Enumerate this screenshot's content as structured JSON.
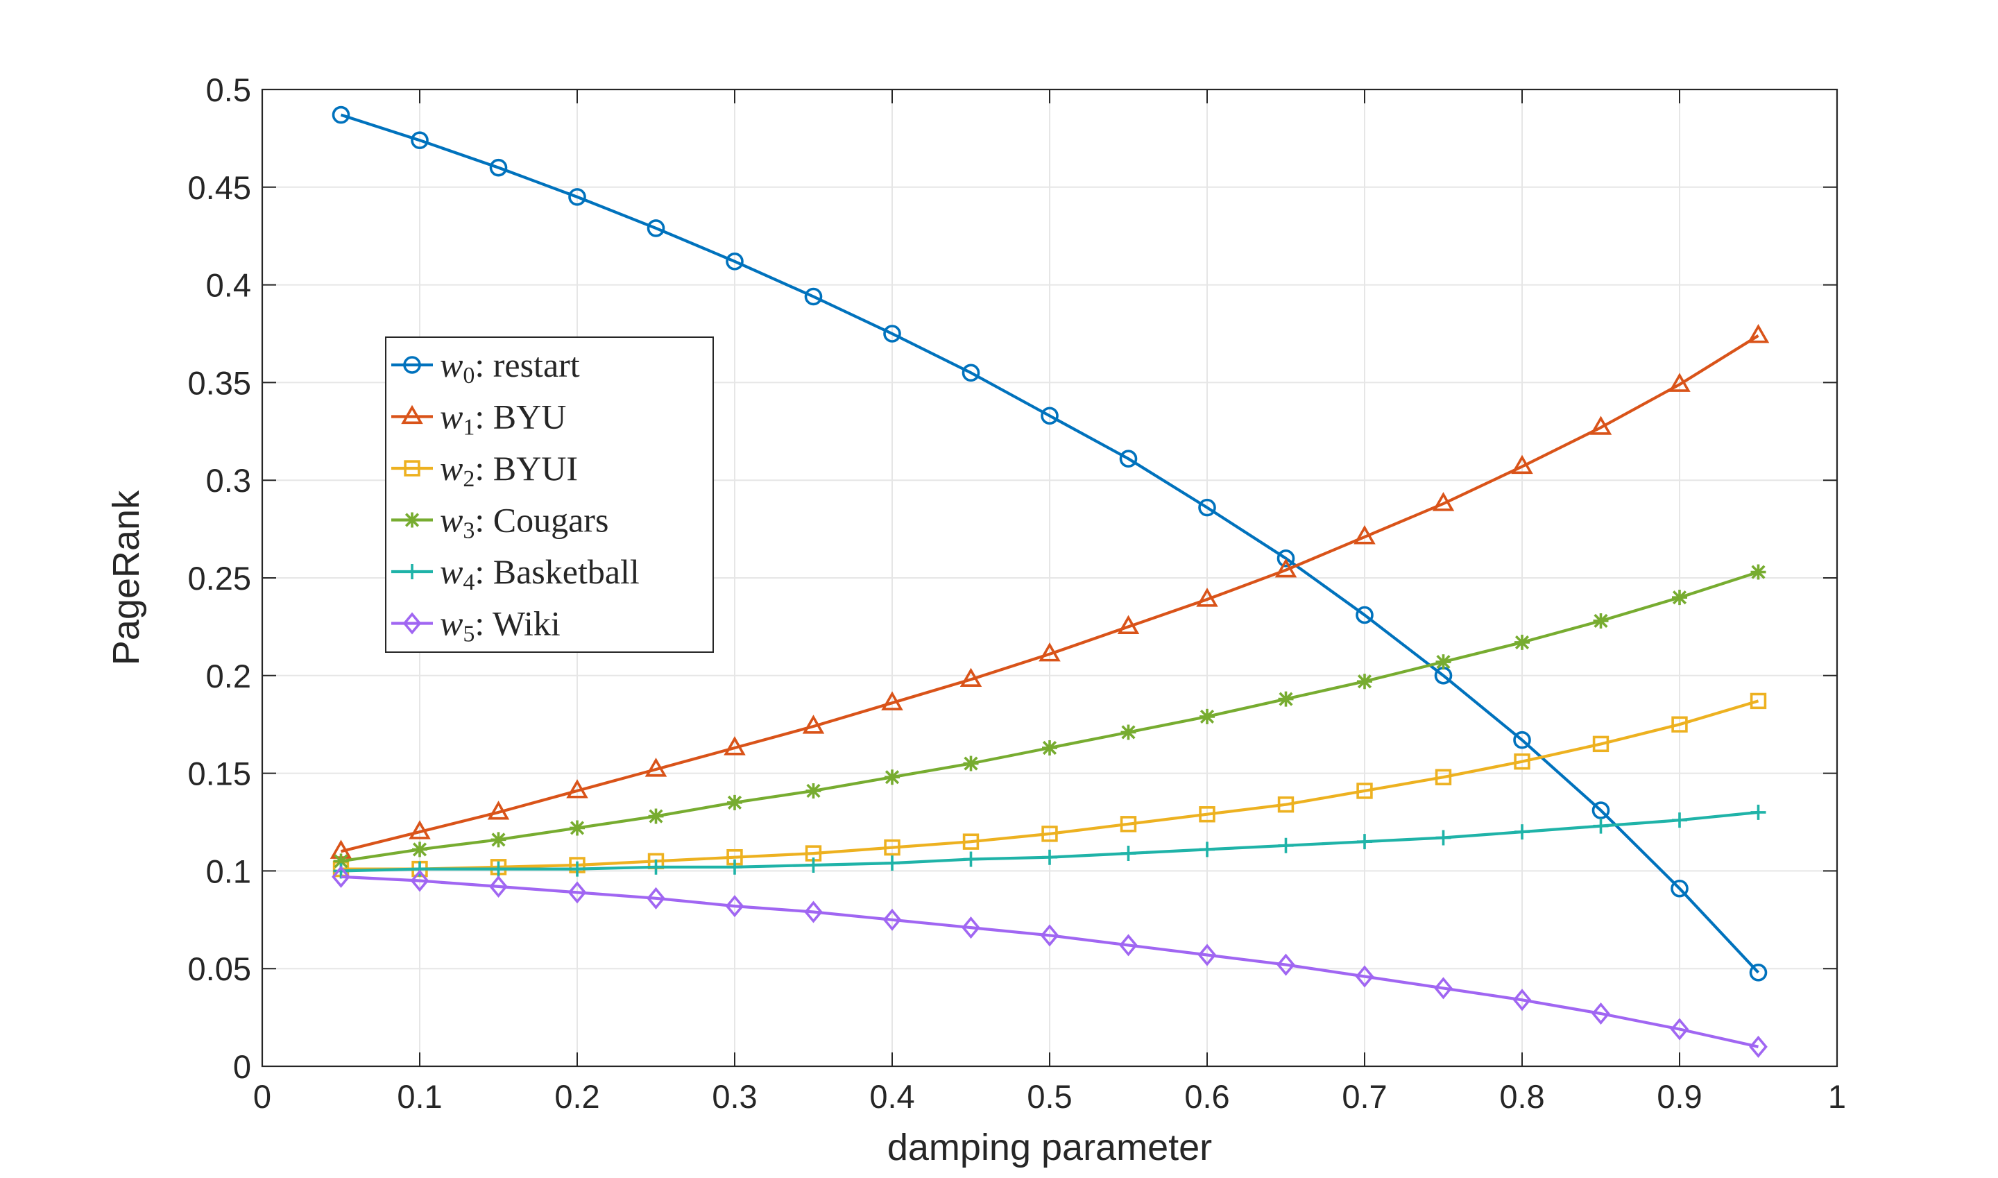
{
  "chart_data": {
    "type": "line",
    "title": "",
    "xlabel": "damping parameter",
    "ylabel": "PageRank",
    "xlim": [
      0,
      1
    ],
    "ylim": [
      0,
      0.5
    ],
    "x_ticks": [
      "0",
      "0.1",
      "0.2",
      "0.3",
      "0.4",
      "0.5",
      "0.6",
      "0.7",
      "0.8",
      "0.9",
      "1"
    ],
    "y_ticks": [
      "0",
      "0.05",
      "0.1",
      "0.15",
      "0.2",
      "0.25",
      "0.3",
      "0.35",
      "0.4",
      "0.45",
      "0.5"
    ],
    "grid": true,
    "legend_position": "left-middle",
    "x": [
      0.05,
      0.1,
      0.15,
      0.2,
      0.25,
      0.3,
      0.35,
      0.4,
      0.45,
      0.5,
      0.55,
      0.6,
      0.65,
      0.7,
      0.75,
      0.8,
      0.85,
      0.9,
      0.95
    ],
    "series": [
      {
        "name": "w0: restart",
        "sym": "w",
        "sub": "0",
        "label": ": restart",
        "color": "#0072BD",
        "marker": "circle",
        "values": [
          0.487,
          0.474,
          0.46,
          0.445,
          0.429,
          0.412,
          0.394,
          0.375,
          0.355,
          0.333,
          0.311,
          0.286,
          0.26,
          0.231,
          0.2,
          0.167,
          0.131,
          0.091,
          0.048
        ]
      },
      {
        "name": "w1: BYU",
        "sym": "w",
        "sub": "1",
        "label": ": BYU",
        "color": "#D95319",
        "marker": "triangle",
        "values": [
          0.11,
          0.12,
          0.13,
          0.141,
          0.152,
          0.163,
          0.174,
          0.186,
          0.198,
          0.211,
          0.225,
          0.239,
          0.254,
          0.271,
          0.288,
          0.307,
          0.327,
          0.349,
          0.374
        ]
      },
      {
        "name": "w2: BYUI",
        "sym": "w",
        "sub": "2",
        "label": ": BYUI",
        "color": "#EDB120",
        "marker": "square",
        "values": [
          0.101,
          0.101,
          0.102,
          0.103,
          0.105,
          0.107,
          0.109,
          0.112,
          0.115,
          0.119,
          0.124,
          0.129,
          0.134,
          0.141,
          0.148,
          0.156,
          0.165,
          0.175,
          0.187
        ]
      },
      {
        "name": "w3: Cougars",
        "sym": "w",
        "sub": "3",
        "label": ": Cougars",
        "color": "#77AC30",
        "marker": "asterisk",
        "values": [
          0.105,
          0.111,
          0.116,
          0.122,
          0.128,
          0.135,
          0.141,
          0.148,
          0.155,
          0.163,
          0.171,
          0.179,
          0.188,
          0.197,
          0.207,
          0.217,
          0.228,
          0.24,
          0.253
        ]
      },
      {
        "name": "w4: Basketball",
        "sym": "w",
        "sub": "4",
        "label": ": Basketball",
        "color": "#1FB3A8",
        "marker": "plus",
        "values": [
          0.1,
          0.101,
          0.101,
          0.101,
          0.102,
          0.102,
          0.103,
          0.104,
          0.106,
          0.107,
          0.109,
          0.111,
          0.113,
          0.115,
          0.117,
          0.12,
          0.123,
          0.126,
          0.13
        ]
      },
      {
        "name": "w5: Wiki",
        "sym": "w",
        "sub": "5",
        "label": ": Wiki",
        "color": "#A066F2",
        "marker": "diamond",
        "values": [
          0.097,
          0.095,
          0.092,
          0.089,
          0.086,
          0.082,
          0.079,
          0.075,
          0.071,
          0.067,
          0.062,
          0.057,
          0.052,
          0.046,
          0.04,
          0.034,
          0.027,
          0.019,
          0.01
        ]
      }
    ]
  }
}
